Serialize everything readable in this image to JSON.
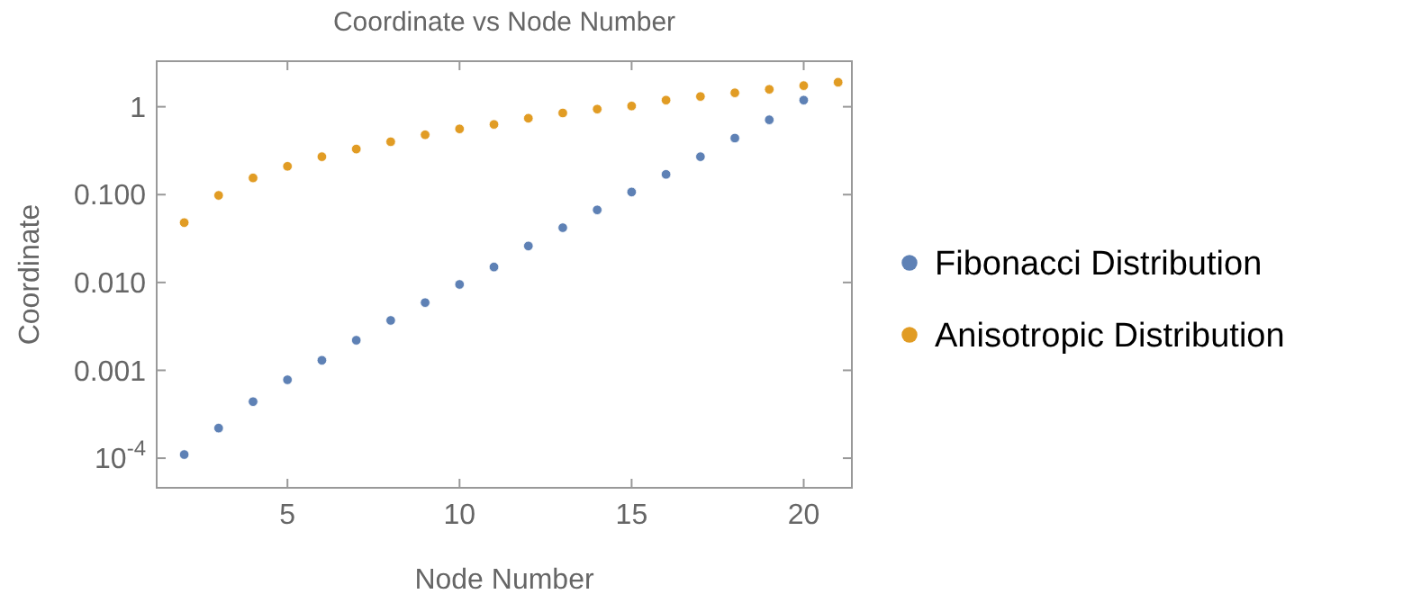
{
  "chart_data": {
    "type": "scatter",
    "title": "Coordinate vs Node Number",
    "xlabel": "Node Number",
    "ylabel": "Coordinate",
    "x": [
      2,
      3,
      4,
      5,
      6,
      7,
      8,
      9,
      10,
      11,
      12,
      13,
      14,
      15,
      16,
      17,
      18,
      19,
      20,
      21
    ],
    "series": [
      {
        "name": "Fibonacci Distribution",
        "color": "#5e81b5",
        "values": [
          0.00011,
          0.00022,
          0.00044,
          0.00078,
          0.0013,
          0.0022,
          0.0037,
          0.0059,
          0.0095,
          0.015,
          0.026,
          0.042,
          0.067,
          0.107,
          0.17,
          0.27,
          0.44,
          0.71,
          1.19,
          null
        ]
      },
      {
        "name": "Anisotropic Distribution",
        "color": "#e19c24",
        "values": [
          0.048,
          0.098,
          0.155,
          0.21,
          0.27,
          0.33,
          0.4,
          0.48,
          0.56,
          0.63,
          0.74,
          0.85,
          0.94,
          1.02,
          1.19,
          1.31,
          1.44,
          1.58,
          1.74,
          1.9
        ]
      }
    ],
    "xlim": [
      1.2,
      21.4
    ],
    "xticks": [
      5,
      10,
      15,
      20
    ],
    "ylim": [
      4.6e-05,
      3.3
    ],
    "yticks": [
      {
        "value": 0.0001,
        "label": "10$^{-4}$"
      },
      {
        "value": 0.001,
        "label": "0.001"
      },
      {
        "value": 0.01,
        "label": "0.010"
      },
      {
        "value": 0.1,
        "label": "0.100"
      },
      1
    ],
    "log": "y",
    "grid": false,
    "legend": "right",
    "marker": "circle"
  }
}
